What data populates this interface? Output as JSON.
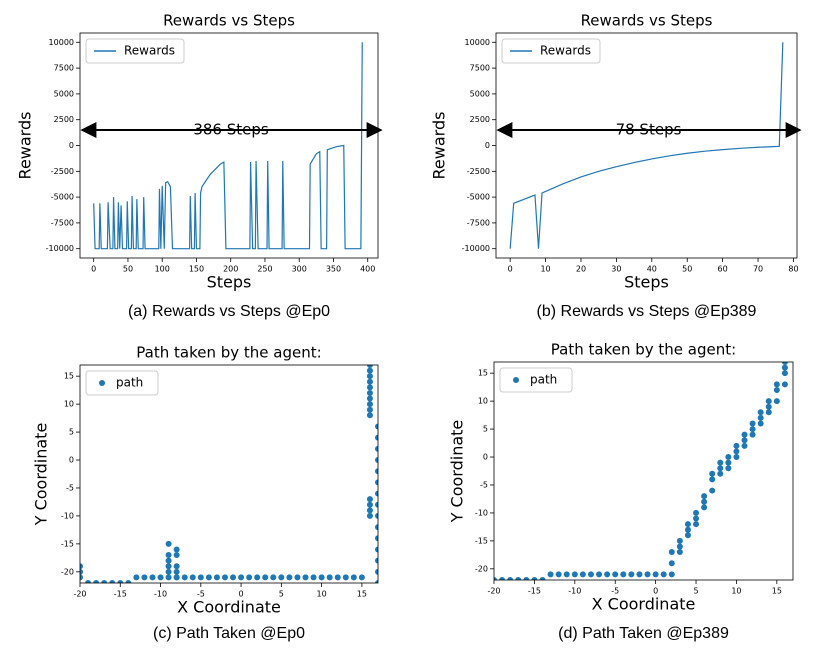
{
  "chart_data": [
    {
      "type": "line",
      "title": "Rewards vs Steps",
      "caption": "(a) Rewards vs Steps @Ep0",
      "x_label": "Steps",
      "y_label": "Rewards",
      "legend": "upper left",
      "color": "#1f77b4",
      "series": [
        {
          "name": "Rewards",
          "color": "#1f77b4",
          "x": [
            0,
            2,
            8,
            9,
            11,
            20,
            21,
            24,
            28,
            29,
            31,
            35,
            36,
            38,
            40,
            42,
            48,
            49,
            51,
            55,
            56,
            58,
            62,
            63,
            65,
            72,
            73,
            75,
            95,
            96,
            98,
            100,
            103,
            105,
            108,
            112,
            115,
            140,
            141,
            143,
            147,
            148,
            150,
            155,
            156,
            158,
            170,
            185,
            190,
            193,
            228,
            229,
            232,
            236,
            237,
            240,
            253,
            254,
            256,
            275,
            276,
            278,
            315,
            316,
            325,
            330,
            332,
            340,
            341,
            355,
            365,
            367,
            390,
            392
          ],
          "values": [
            -5600,
            -10000,
            -10000,
            -5600,
            -10000,
            -10000,
            -5500,
            -10000,
            -10000,
            -5000,
            -10000,
            -10000,
            -5500,
            -10000,
            -5800,
            -10000,
            -10000,
            -5400,
            -10000,
            -10000,
            -4900,
            -10000,
            -10000,
            -5200,
            -10000,
            -10000,
            -5000,
            -10000,
            -10000,
            -4200,
            -10000,
            -3900,
            -10000,
            -3600,
            -3500,
            -4000,
            -10000,
            -10000,
            -4900,
            -10000,
            -10000,
            -4600,
            -10000,
            -10000,
            -4600,
            -4000,
            -2800,
            -1800,
            -1600,
            -10000,
            -10000,
            -1600,
            -10000,
            -10000,
            -1500,
            -10000,
            -10000,
            -1500,
            -10000,
            -10000,
            -1500,
            -10000,
            -10000,
            -1800,
            -800,
            -600,
            -10000,
            -10000,
            -400,
            -100,
            0,
            -10000,
            -10000,
            10000
          ]
        }
      ],
      "annotation": {
        "text": "386 Steps",
        "y": 1500
      },
      "xlim": [
        -20,
        415
      ],
      "xticks": [
        0,
        50,
        100,
        150,
        200,
        250,
        300,
        350,
        400
      ],
      "ylim": [
        -10900,
        10900
      ],
      "yticks": [
        -10000,
        -7500,
        -5000,
        -2500,
        0,
        2500,
        5000,
        7500,
        10000
      ]
    },
    {
      "type": "line",
      "title": "Rewards vs Steps",
      "caption": "(b) Rewards vs Steps @Ep389",
      "x_label": "Steps",
      "y_label": "Rewards",
      "legend": "upper left",
      "color": "#1f77b4",
      "series": [
        {
          "name": "Rewards",
          "color": "#1f77b4",
          "x": [
            0,
            1,
            7,
            8,
            9,
            10,
            15,
            20,
            25,
            30,
            35,
            40,
            45,
            50,
            55,
            60,
            65,
            70,
            75,
            76,
            77
          ],
          "values": [
            -10000,
            -5600,
            -4800,
            -10000,
            -4600,
            -4450,
            -3700,
            -3050,
            -2500,
            -2050,
            -1650,
            -1300,
            -1000,
            -750,
            -550,
            -400,
            -270,
            -170,
            -100,
            -80,
            10000
          ]
        }
      ],
      "annotation": {
        "text": "78 Steps",
        "y": 1500
      },
      "xlim": [
        -4,
        81
      ],
      "xticks": [
        0,
        10,
        20,
        30,
        40,
        50,
        60,
        70,
        80
      ],
      "ylim": [
        -10900,
        10900
      ],
      "yticks": [
        -10000,
        -7500,
        -5000,
        -2500,
        0,
        2500,
        5000,
        7500,
        10000
      ]
    },
    {
      "type": "scatter",
      "title": "Path taken by the agent:",
      "caption": "(c) Path Taken @Ep0",
      "x_label": "X Coordinate",
      "y_label": "Y Coordinate",
      "legend": "upper left",
      "color": "#1f77b4",
      "series": [
        {
          "name": "path",
          "color": "#1f77b4",
          "x": [
            -20,
            -20,
            -20,
            -19,
            -18,
            -17,
            -16,
            -15,
            -14,
            -13,
            -12,
            -11,
            -10,
            -9,
            -8,
            -7,
            -6,
            -5,
            -4,
            -3,
            -2,
            -1,
            0,
            1,
            2,
            3,
            4,
            5,
            6,
            7,
            8,
            9,
            10,
            11,
            12,
            13,
            14,
            15,
            -9,
            -9,
            -9,
            -9,
            -9,
            -8,
            -8,
            -8,
            -8,
            -8,
            16,
            16,
            16,
            16,
            16,
            16,
            16,
            16,
            16,
            16,
            16,
            16,
            16,
            16,
            17,
            17,
            17,
            17,
            17,
            17,
            17,
            17,
            17,
            17,
            17,
            17,
            17,
            17,
            17
          ],
          "values": [
            -19,
            -20,
            -21,
            -22,
            -22,
            -22,
            -22,
            -22,
            -22,
            -21,
            -21,
            -21,
            -21,
            -21,
            -21,
            -21,
            -21,
            -21,
            -21,
            -21,
            -21,
            -21,
            -21,
            -21,
            -21,
            -21,
            -21,
            -21,
            -21,
            -21,
            -21,
            -21,
            -21,
            -21,
            -21,
            -21,
            -21,
            -21,
            -20,
            -19,
            -18,
            -17,
            -15,
            -21,
            -20,
            -19,
            -17,
            -16,
            -10,
            -9,
            -8,
            -7,
            8,
            9,
            10,
            11,
            12,
            13,
            14,
            15,
            16,
            17,
            -22,
            -20,
            -18,
            -16,
            -14,
            -12,
            -10,
            -8,
            -6,
            -4,
            -2,
            0,
            2,
            4,
            6
          ]
        }
      ],
      "xlim": [
        -20,
        17
      ],
      "xticks": [
        -20,
        -15,
        -10,
        -5,
        0,
        5,
        10,
        15
      ],
      "ylim": [
        -22,
        17
      ],
      "yticks": [
        -20,
        -15,
        -10,
        -5,
        0,
        5,
        10,
        15
      ]
    },
    {
      "type": "scatter",
      "title": "Path taken by the agent:",
      "caption": "(d) Path Taken @Ep389",
      "x_label": "X Coordinate",
      "y_label": "Y Coordinate",
      "legend": "upper left",
      "color": "#1f77b4",
      "series": [
        {
          "name": "path",
          "color": "#1f77b4",
          "x": [
            -20,
            -19,
            -18,
            -17,
            -16,
            -15,
            -14,
            -13,
            -12,
            -11,
            -10,
            -9,
            -8,
            -7,
            -6,
            -5,
            -4,
            -3,
            -2,
            -1,
            0,
            1,
            2,
            2,
            2,
            3,
            3,
            3,
            4,
            4,
            4,
            5,
            5,
            5,
            6,
            6,
            6,
            7,
            7,
            7,
            8,
            8,
            8,
            9,
            9,
            9,
            10,
            10,
            10,
            11,
            11,
            11,
            12,
            12,
            12,
            13,
            13,
            13,
            14,
            14,
            14,
            15,
            15,
            15,
            16,
            16,
            16,
            16
          ],
          "values": [
            -22,
            -22,
            -22,
            -22,
            -22,
            -22,
            -22,
            -21,
            -21,
            -21,
            -21,
            -21,
            -21,
            -21,
            -21,
            -21,
            -21,
            -21,
            -21,
            -21,
            -21,
            -21,
            -21,
            -19,
            -17,
            -17,
            -16,
            -15,
            -14,
            -13,
            -12,
            -12,
            -11,
            -10,
            -9,
            -8,
            -7,
            -6,
            -4,
            -3,
            -3,
            -2,
            -1,
            -2,
            -1,
            0,
            0,
            1,
            2,
            2,
            3,
            4,
            4,
            5,
            6,
            6,
            7,
            8,
            8,
            9,
            10,
            10,
            12,
            13,
            13,
            15,
            16,
            17
          ]
        }
      ],
      "xlim": [
        -20,
        17
      ],
      "xticks": [
        -20,
        -15,
        -10,
        -5,
        0,
        5,
        10,
        15
      ],
      "ylim": [
        -22,
        17
      ],
      "yticks": [
        -20,
        -15,
        -10,
        -5,
        0,
        5,
        10,
        15
      ]
    }
  ]
}
